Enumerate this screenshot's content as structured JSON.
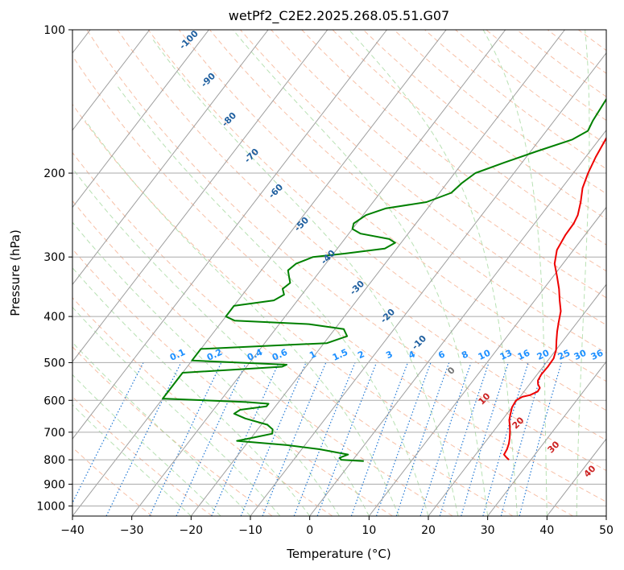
{
  "chart_data": {
    "type": "line",
    "title": "wetPf2_C2E2.2025.268.05.51.G07",
    "xlabel": "Temperature (°C)",
    "ylabel": "Pressure (hPa)",
    "xlim": [
      -40,
      50
    ],
    "ylim": [
      1050,
      100
    ],
    "yscale": "log",
    "x_ticks": [
      "−40",
      "−30",
      "−20",
      "−10",
      "0",
      "10",
      "20",
      "30",
      "40",
      "50"
    ],
    "y_ticks": [
      "100",
      "200",
      "300",
      "400",
      "500",
      "600",
      "700",
      "800",
      "900",
      "1000"
    ],
    "grid": true,
    "colors": {
      "temperature": "#ee0000",
      "dewpoint": "#008000",
      "dry_adiabat": "#f4a582",
      "moist_adiabat": "#a6d9a0",
      "mixing_ratio": "#1f77d4",
      "isotherm": "#9e9e9e",
      "dry_label": "#1f5f9f",
      "mixing_label": "#1e90ff",
      "isotherm_label": "#cc2222"
    },
    "series": [
      {
        "key": "temperature",
        "points": [
          [
            26.3,
            800
          ],
          [
            25.5,
            790
          ],
          [
            24.8,
            780
          ],
          [
            24.6,
            760
          ],
          [
            24.2,
            740
          ],
          [
            23.6,
            720
          ],
          [
            22.9,
            700
          ],
          [
            22.1,
            680
          ],
          [
            21.2,
            660
          ],
          [
            20.6,
            640
          ],
          [
            20.0,
            620
          ],
          [
            19.8,
            600
          ],
          [
            20.4,
            590
          ],
          [
            21.5,
            585
          ],
          [
            22.3,
            575
          ],
          [
            22.2,
            565
          ],
          [
            21.4,
            555
          ],
          [
            20.9,
            545
          ],
          [
            20.7,
            530
          ],
          [
            20.8,
            510
          ],
          [
            20.7,
            490
          ],
          [
            20.0,
            470
          ],
          [
            18.9,
            450
          ],
          [
            17.8,
            430
          ],
          [
            16.8,
            410
          ],
          [
            15.8,
            390
          ],
          [
            14.2,
            370
          ],
          [
            12.6,
            350
          ],
          [
            10.7,
            330
          ],
          [
            8.6,
            310
          ],
          [
            7.2,
            290
          ],
          [
            6.7,
            270
          ],
          [
            6.6,
            255
          ],
          [
            6.2,
            245
          ],
          [
            5.0,
            230
          ],
          [
            3.5,
            215
          ],
          [
            2.5,
            200
          ],
          [
            1.7,
            185
          ],
          [
            1.1,
            170
          ],
          [
            0.4,
            155
          ],
          [
            0.0,
            140
          ],
          [
            0.1,
            130
          ],
          [
            0.2,
            120
          ],
          [
            1.3,
            110
          ],
          [
            2.5,
            100
          ]
        ]
      },
      {
        "key": "dewpoint",
        "points": [
          [
            2.0,
            805
          ],
          [
            -2.0,
            800
          ],
          [
            -2.5,
            792
          ],
          [
            -1.5,
            780
          ],
          [
            -7.0,
            760
          ],
          [
            -13.0,
            745
          ],
          [
            -22.0,
            730
          ],
          [
            -20.0,
            720
          ],
          [
            -17.0,
            705
          ],
          [
            -17.5,
            690
          ],
          [
            -19.0,
            675
          ],
          [
            -23.5,
            655
          ],
          [
            -26.0,
            640
          ],
          [
            -25.5,
            628
          ],
          [
            -21.5,
            618
          ],
          [
            -21.5,
            610
          ],
          [
            -25.5,
            605
          ],
          [
            -40.0,
            595
          ],
          [
            -40.0,
            525
          ],
          [
            -24.0,
            510
          ],
          [
            -23.5,
            505
          ],
          [
            -40.0,
            495
          ],
          [
            -40.0,
            468
          ],
          [
            -19.5,
            455
          ],
          [
            -17.0,
            440
          ],
          [
            -18.5,
            425
          ],
          [
            -25.0,
            415
          ],
          [
            -38.0,
            408
          ],
          [
            -40.0,
            400
          ],
          [
            -40.0,
            380
          ],
          [
            -34.0,
            370
          ],
          [
            -33.0,
            360
          ],
          [
            -34.0,
            350
          ],
          [
            -33.5,
            340
          ],
          [
            -34.5,
            330
          ],
          [
            -35.5,
            320
          ],
          [
            -35.0,
            310
          ],
          [
            -33.0,
            300
          ],
          [
            -28.0,
            295
          ],
          [
            -22.0,
            288
          ],
          [
            -21.0,
            280
          ],
          [
            -22.5,
            275
          ],
          [
            -28.0,
            268
          ],
          [
            -30.0,
            262
          ],
          [
            -30.5,
            255
          ],
          [
            -29.5,
            245
          ],
          [
            -27.0,
            237
          ],
          [
            -21.0,
            230
          ],
          [
            -18.0,
            220
          ],
          [
            -17.5,
            210
          ],
          [
            -16.5,
            200
          ],
          [
            -13.0,
            190
          ],
          [
            -9.0,
            180
          ],
          [
            -4.5,
            170
          ],
          [
            -3.0,
            163
          ],
          [
            -3.5,
            155
          ],
          [
            -4.0,
            140
          ],
          [
            -3.5,
            130
          ],
          [
            -3.0,
            120
          ],
          [
            -2.0,
            112
          ],
          [
            -0.5,
            105
          ],
          [
            1.5,
            100
          ]
        ]
      }
    ],
    "dry_adiabat_labels": [
      "-100",
      "-90",
      "-80",
      "-70",
      "-60",
      "-50",
      "-40",
      "-30",
      "-20",
      "-10",
      "0"
    ],
    "mixing_ratio_labels": [
      "0.1",
      "0.2",
      "0.4",
      "0.6",
      "1",
      "1.5",
      "2",
      "3",
      "4",
      "6",
      "8",
      "10",
      "13",
      "16",
      "20",
      "25",
      "30",
      "36"
    ],
    "isotherm_labels": [
      "10",
      "20",
      "30",
      "40"
    ]
  }
}
